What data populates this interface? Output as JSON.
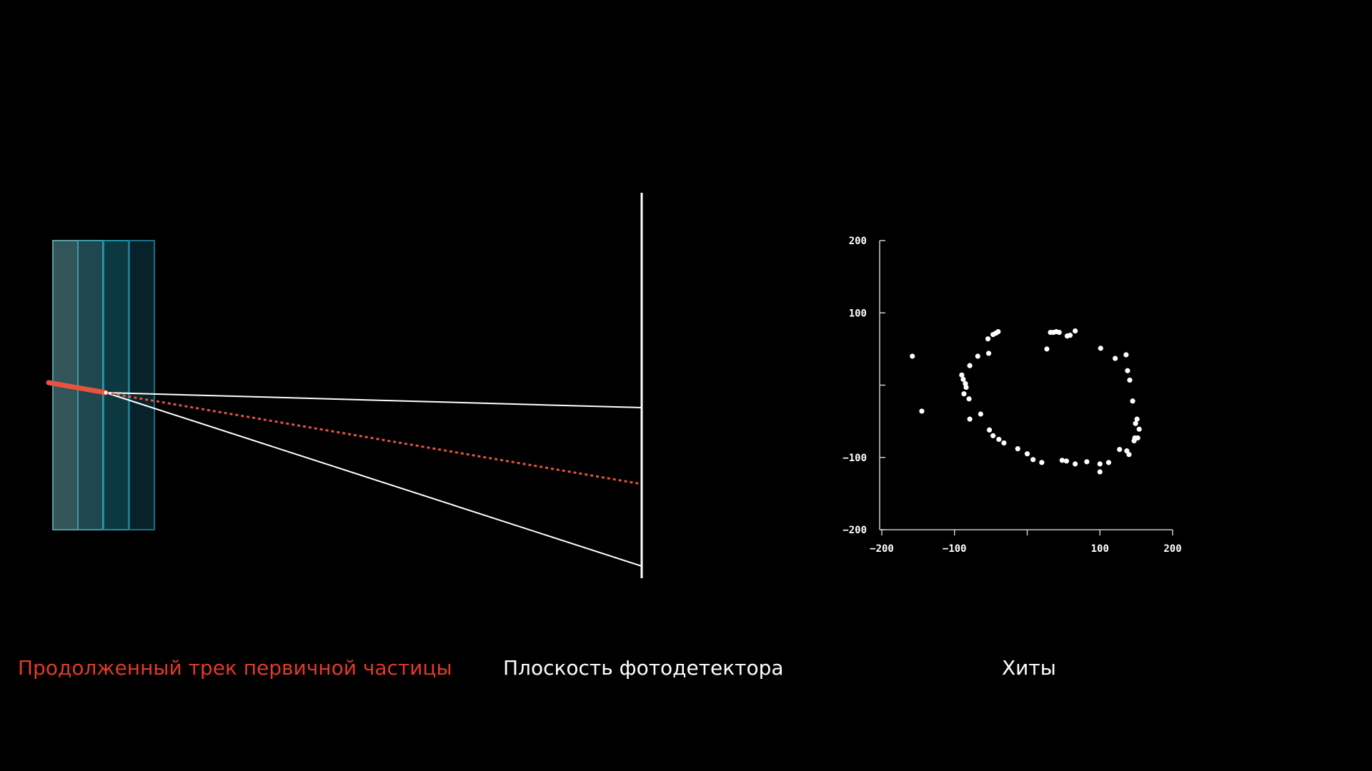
{
  "labels": {
    "extended_track": "Продолженный трек первичной частицы",
    "detector_plane": "Плоскость фотодетектора",
    "hits": "Хиты"
  },
  "colors": {
    "background": "#000000",
    "primary_track": "#e8533f",
    "extended_track_caption": "#e23a2a",
    "rays": "#ffffff",
    "detector_plane": "#ffffff",
    "radiator_layers": [
      "#5a9aa0",
      "#3f9aa6",
      "#1f8fa6",
      "#1a6f86"
    ]
  },
  "chart_data": {
    "type": "scatter",
    "title": "",
    "xlabel": "",
    "ylabel": "",
    "xlim": [
      -200,
      200
    ],
    "ylim": [
      -200,
      200
    ],
    "x_ticks": [
      -200,
      -100,
      0,
      100,
      200
    ],
    "y_ticks": [
      200,
      100,
      0,
      -100,
      -200
    ],
    "x_tick_labels": [
      "−200",
      "−100",
      "",
      "100",
      "200"
    ],
    "y_tick_labels": [
      "200",
      "100",
      "",
      "−100",
      "−200"
    ],
    "grid": false,
    "series": [
      {
        "points": [
          [
            -158,
            40
          ],
          [
            -145,
            -36
          ],
          [
            -79,
            27
          ],
          [
            -68,
            40
          ],
          [
            -54,
            64
          ],
          [
            -53,
            44
          ],
          [
            -47,
            70
          ],
          [
            -43,
            72
          ],
          [
            -40,
            74
          ],
          [
            -79,
            -47
          ],
          [
            -64,
            -40
          ],
          [
            -52,
            -62
          ],
          [
            -47,
            -70
          ],
          [
            -39,
            -75
          ],
          [
            -32,
            -80
          ],
          [
            -88,
            8
          ],
          [
            -90,
            14
          ],
          [
            -85,
            2
          ],
          [
            -87,
            -12
          ],
          [
            -84,
            -3
          ],
          [
            -80,
            -19
          ],
          [
            -13,
            -88
          ],
          [
            0,
            -95
          ],
          [
            8,
            -103
          ],
          [
            20,
            -107
          ],
          [
            36,
            73
          ],
          [
            40,
            74
          ],
          [
            44,
            73
          ],
          [
            55,
            68
          ],
          [
            59,
            69
          ],
          [
            66,
            75
          ],
          [
            101,
            51
          ],
          [
            121,
            37
          ],
          [
            136,
            42
          ],
          [
            138,
            20
          ],
          [
            141,
            7
          ],
          [
            145,
            -22
          ],
          [
            151,
            -47
          ],
          [
            154,
            -61
          ],
          [
            137,
            -91
          ],
          [
            147,
            -77
          ],
          [
            148,
            -73
          ],
          [
            152,
            -73
          ],
          [
            149,
            -53
          ],
          [
            100,
            -109
          ],
          [
            100,
            -120
          ],
          [
            82,
            -106
          ],
          [
            66,
            -109
          ],
          [
            54,
            -105
          ],
          [
            48,
            -104
          ],
          [
            112,
            -107
          ],
          [
            140,
            -96
          ],
          [
            127,
            -89
          ],
          [
            32,
            73
          ],
          [
            27,
            50
          ]
        ]
      }
    ]
  }
}
